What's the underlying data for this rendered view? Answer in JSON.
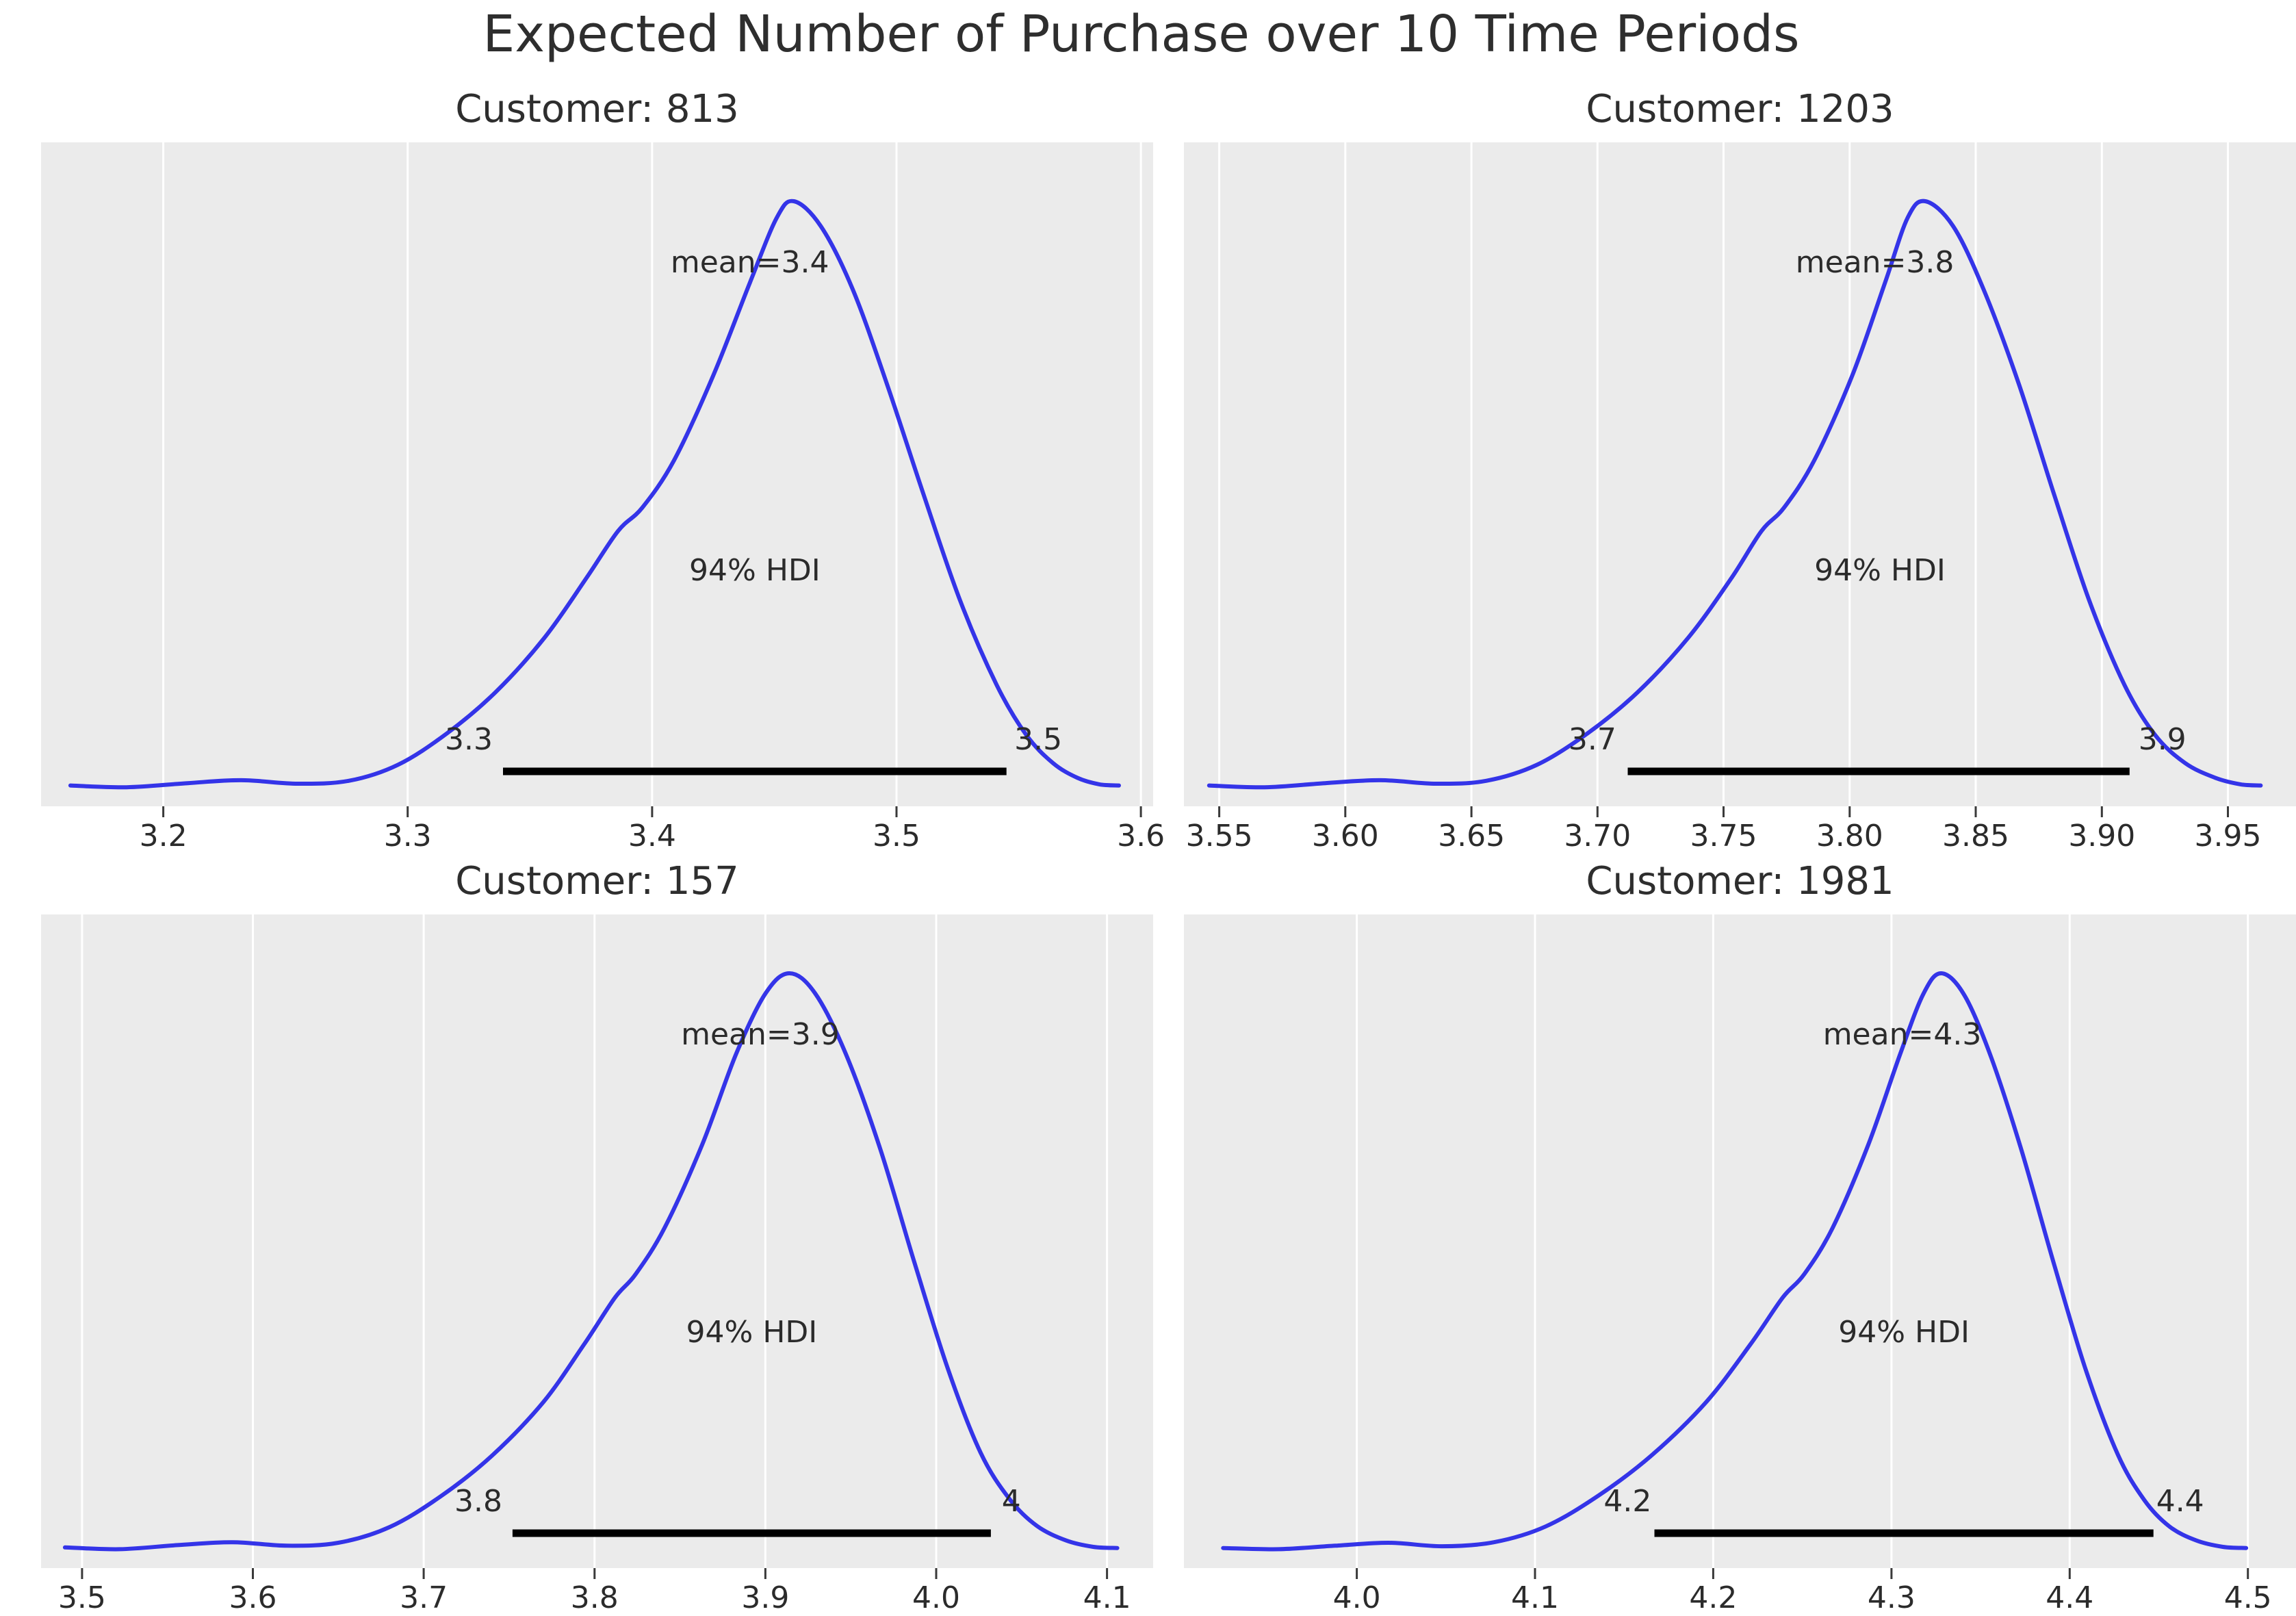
{
  "figure": {
    "title": "Expected Number of Purchase over 10 Time Periods",
    "background_color": "#ffffff",
    "panel_background_color": "#ebebeb",
    "grid_color": "#ffffff",
    "curve_color": "#3434e8",
    "hdi_bar_color": "#000000",
    "text_color": "#2b2b2b"
  },
  "chart_data": [
    {
      "type": "area",
      "subtype": "kde-density",
      "title": "Customer: 813",
      "mean": 3.4,
      "mean_label": "mean=3.4",
      "hdi_label": "94% HDI",
      "hdi_lower_label": "3.3",
      "hdi_upper_label": "3.5",
      "hdi_interval": [
        3.339,
        3.545
      ],
      "x_range": [
        3.15,
        3.605
      ],
      "peak_x": 3.458,
      "grid": true,
      "x_ticks": [
        {
          "value": 3.2,
          "label": "3.2"
        },
        {
          "value": 3.3,
          "label": "3.3"
        },
        {
          "value": 3.4,
          "label": "3.4"
        },
        {
          "value": 3.5,
          "label": "3.5"
        },
        {
          "value": 3.6,
          "label": "3.6"
        }
      ],
      "ann": {
        "mean_x": 3.44,
        "hdi_text_x": 3.442,
        "lower_x": 3.325,
        "upper_x": 3.558
      },
      "curve": [
        [
          3.162,
          0.012
        ],
        [
          3.185,
          0.009
        ],
        [
          3.21,
          0.016
        ],
        [
          3.232,
          0.021
        ],
        [
          3.255,
          0.015
        ],
        [
          3.276,
          0.02
        ],
        [
          3.296,
          0.047
        ],
        [
          3.316,
          0.1
        ],
        [
          3.336,
          0.17
        ],
        [
          3.356,
          0.262
        ],
        [
          3.373,
          0.362
        ],
        [
          3.386,
          0.442
        ],
        [
          3.396,
          0.482
        ],
        [
          3.409,
          0.562
        ],
        [
          3.425,
          0.705
        ],
        [
          3.44,
          0.862
        ],
        [
          3.451,
          0.972
        ],
        [
          3.458,
          1.0
        ],
        [
          3.469,
          0.958
        ],
        [
          3.482,
          0.852
        ],
        [
          3.496,
          0.692
        ],
        [
          3.511,
          0.505
        ],
        [
          3.526,
          0.325
        ],
        [
          3.541,
          0.182
        ],
        [
          3.553,
          0.098
        ],
        [
          3.564,
          0.05
        ],
        [
          3.574,
          0.025
        ],
        [
          3.583,
          0.014
        ],
        [
          3.591,
          0.012
        ]
      ]
    },
    {
      "type": "area",
      "subtype": "kde-density",
      "title": "Customer: 1203",
      "mean": 3.8,
      "mean_label": "mean=3.8",
      "hdi_label": "94% HDI",
      "hdi_lower_label": "3.7",
      "hdi_upper_label": "3.9",
      "hdi_interval": [
        3.712,
        3.911
      ],
      "x_range": [
        3.536,
        3.977
      ],
      "peak_x": 3.83,
      "grid": true,
      "x_ticks": [
        {
          "value": 3.55,
          "label": "3.55"
        },
        {
          "value": 3.6,
          "label": "3.60"
        },
        {
          "value": 3.65,
          "label": "3.65"
        },
        {
          "value": 3.7,
          "label": "3.70"
        },
        {
          "value": 3.75,
          "label": "3.75"
        },
        {
          "value": 3.8,
          "label": "3.80"
        },
        {
          "value": 3.85,
          "label": "3.85"
        },
        {
          "value": 3.9,
          "label": "3.90"
        },
        {
          "value": 3.95,
          "label": "3.95"
        }
      ],
      "ann": {
        "mean_x": 3.81,
        "hdi_text_x": 3.812,
        "lower_x": 3.698,
        "upper_x": 3.924
      },
      "curve": [
        [
          3.546,
          0.012
        ],
        [
          3.568,
          0.009
        ],
        [
          3.592,
          0.016
        ],
        [
          3.614,
          0.021
        ],
        [
          3.636,
          0.015
        ],
        [
          3.656,
          0.02
        ],
        [
          3.676,
          0.047
        ],
        [
          3.696,
          0.1
        ],
        [
          3.716,
          0.17
        ],
        [
          3.736,
          0.262
        ],
        [
          3.753,
          0.362
        ],
        [
          3.765,
          0.442
        ],
        [
          3.774,
          0.482
        ],
        [
          3.786,
          0.562
        ],
        [
          3.801,
          0.705
        ],
        [
          3.814,
          0.862
        ],
        [
          3.823,
          0.972
        ],
        [
          3.83,
          1.0
        ],
        [
          3.841,
          0.958
        ],
        [
          3.853,
          0.852
        ],
        [
          3.867,
          0.692
        ],
        [
          3.881,
          0.505
        ],
        [
          3.895,
          0.325
        ],
        [
          3.909,
          0.182
        ],
        [
          3.921,
          0.098
        ],
        [
          3.933,
          0.05
        ],
        [
          3.945,
          0.025
        ],
        [
          3.955,
          0.014
        ],
        [
          3.963,
          0.012
        ]
      ]
    },
    {
      "type": "area",
      "subtype": "kde-density",
      "title": "Customer: 157",
      "mean": 3.9,
      "mean_label": "mean=3.9",
      "hdi_label": "94% HDI",
      "hdi_lower_label": "3.8",
      "hdi_upper_label": "4",
      "hdi_interval": [
        3.752,
        4.032
      ],
      "x_range": [
        3.476,
        4.127
      ],
      "peak_x": 3.914,
      "grid": true,
      "x_ticks": [
        {
          "value": 3.5,
          "label": "3.5"
        },
        {
          "value": 3.6,
          "label": "3.6"
        },
        {
          "value": 3.7,
          "label": "3.7"
        },
        {
          "value": 3.8,
          "label": "3.8"
        },
        {
          "value": 3.9,
          "label": "3.9"
        },
        {
          "value": 4.0,
          "label": "4.0"
        },
        {
          "value": 4.1,
          "label": "4.1"
        }
      ],
      "ann": {
        "mean_x": 3.897,
        "hdi_text_x": 3.892,
        "lower_x": 3.732,
        "upper_x": 4.044
      },
      "curve": [
        [
          3.49,
          0.012
        ],
        [
          3.522,
          0.009
        ],
        [
          3.556,
          0.016
        ],
        [
          3.588,
          0.021
        ],
        [
          3.62,
          0.015
        ],
        [
          3.65,
          0.02
        ],
        [
          3.68,
          0.047
        ],
        [
          3.71,
          0.1
        ],
        [
          3.74,
          0.17
        ],
        [
          3.77,
          0.262
        ],
        [
          3.794,
          0.362
        ],
        [
          3.812,
          0.442
        ],
        [
          3.824,
          0.482
        ],
        [
          3.841,
          0.562
        ],
        [
          3.863,
          0.705
        ],
        [
          3.883,
          0.862
        ],
        [
          3.9,
          0.965
        ],
        [
          3.914,
          1.0
        ],
        [
          3.929,
          0.966
        ],
        [
          3.947,
          0.862
        ],
        [
          3.967,
          0.7
        ],
        [
          3.987,
          0.505
        ],
        [
          4.007,
          0.318
        ],
        [
          4.026,
          0.175
        ],
        [
          4.043,
          0.095
        ],
        [
          4.059,
          0.049
        ],
        [
          4.076,
          0.024
        ],
        [
          4.092,
          0.013
        ],
        [
          4.106,
          0.011
        ]
      ]
    },
    {
      "type": "area",
      "subtype": "kde-density",
      "title": "Customer: 1981",
      "mean": 4.3,
      "mean_label": "mean=4.3",
      "hdi_label": "94% HDI",
      "hdi_lower_label": "4.2",
      "hdi_upper_label": "4.4",
      "hdi_interval": [
        4.167,
        4.447
      ],
      "x_range": [
        3.903,
        4.527
      ],
      "peak_x": 4.328,
      "grid": true,
      "x_ticks": [
        {
          "value": 4.0,
          "label": "4.0"
        },
        {
          "value": 4.1,
          "label": "4.1"
        },
        {
          "value": 4.2,
          "label": "4.2"
        },
        {
          "value": 4.3,
          "label": "4.3"
        },
        {
          "value": 4.4,
          "label": "4.4"
        },
        {
          "value": 4.5,
          "label": "4.5"
        }
      ],
      "ann": {
        "mean_x": 4.306,
        "hdi_text_x": 4.307,
        "lower_x": 4.152,
        "upper_x": 4.462
      },
      "curve": [
        [
          3.925,
          0.011
        ],
        [
          3.956,
          0.009
        ],
        [
          3.988,
          0.015
        ],
        [
          4.018,
          0.02
        ],
        [
          4.048,
          0.014
        ],
        [
          4.077,
          0.021
        ],
        [
          4.106,
          0.048
        ],
        [
          4.136,
          0.102
        ],
        [
          4.166,
          0.172
        ],
        [
          4.196,
          0.262
        ],
        [
          4.221,
          0.362
        ],
        [
          4.239,
          0.442
        ],
        [
          4.251,
          0.482
        ],
        [
          4.267,
          0.562
        ],
        [
          4.287,
          0.705
        ],
        [
          4.305,
          0.862
        ],
        [
          4.318,
          0.965
        ],
        [
          4.328,
          1.0
        ],
        [
          4.341,
          0.962
        ],
        [
          4.356,
          0.855
        ],
        [
          4.373,
          0.695
        ],
        [
          4.391,
          0.502
        ],
        [
          4.409,
          0.318
        ],
        [
          4.427,
          0.172
        ],
        [
          4.442,
          0.093
        ],
        [
          4.456,
          0.048
        ],
        [
          4.471,
          0.024
        ],
        [
          4.486,
          0.013
        ],
        [
          4.499,
          0.011
        ]
      ]
    }
  ]
}
